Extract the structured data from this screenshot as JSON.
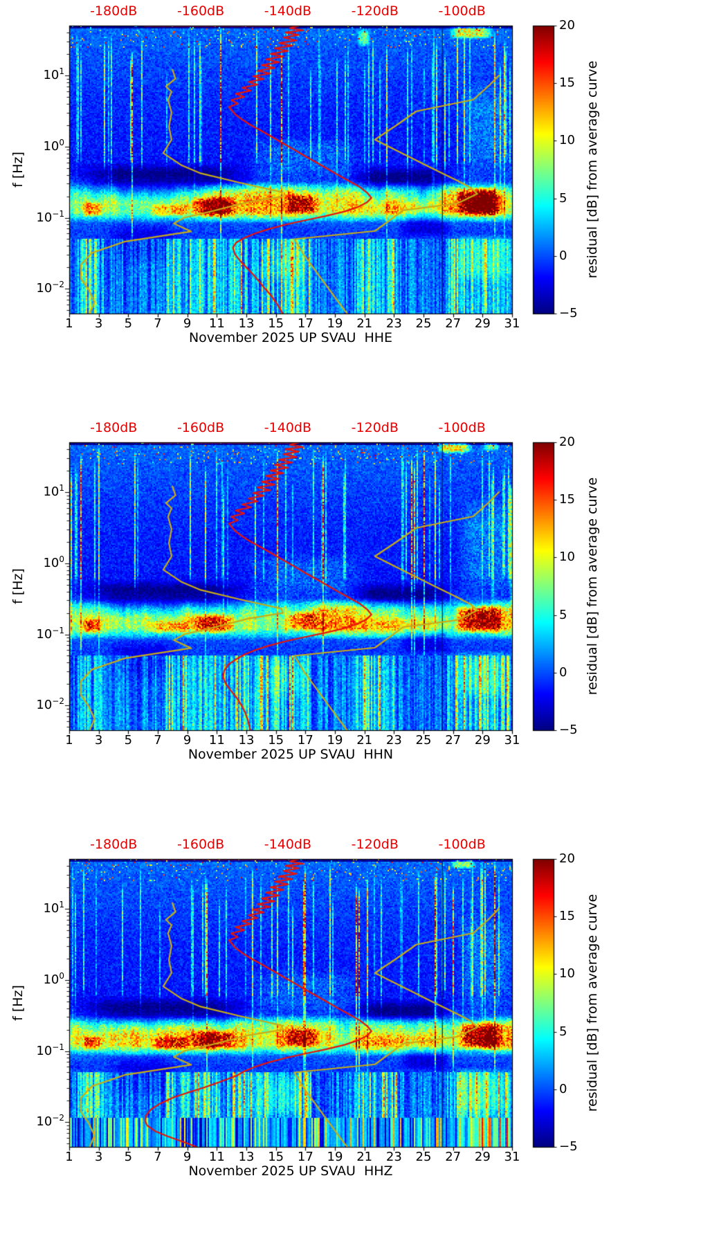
{
  "figure": {
    "background": "#ffffff"
  },
  "colors": {
    "red_curve": "#e81408",
    "yellow_curve": "#c9ac16",
    "top_axis_text": "#e80000",
    "axis": "#000000",
    "dark_line": "#0a1450"
  },
  "chart_data": {
    "type": "heatmap",
    "x_axis": {
      "range": [
        1,
        31
      ],
      "ticks": [
        1,
        3,
        5,
        7,
        9,
        11,
        13,
        15,
        17,
        19,
        21,
        23,
        25,
        27,
        29,
        31
      ]
    },
    "y_axis": {
      "label": "f [Hz]",
      "scale": "log",
      "range": [
        0.0045,
        50
      ],
      "major_ticks": [
        {
          "f": 10,
          "exp": "1"
        },
        {
          "f": 1,
          "exp": "0"
        },
        {
          "f": 0.1,
          "exp": "−1"
        },
        {
          "f": 0.01,
          "exp": "−2"
        }
      ]
    },
    "top_axis": {
      "db_at_day1": -190.2,
      "db_at_day31": -88.5,
      "ticks": [
        {
          "db": -180,
          "label": "-180dB"
        },
        {
          "db": -160,
          "label": "-160dB"
        },
        {
          "db": -140,
          "label": "-140dB"
        },
        {
          "db": -120,
          "label": "-120dB"
        },
        {
          "db": -100,
          "label": "-100dB"
        }
      ]
    },
    "colorbar": {
      "label": "residual [dB] from average curve",
      "range": [
        -5,
        20
      ],
      "colormap": "jet",
      "ticks": [
        {
          "v": 20,
          "label": "20"
        },
        {
          "v": 15,
          "label": "15"
        },
        {
          "v": 10,
          "label": "10"
        },
        {
          "v": 5,
          "label": "5"
        },
        {
          "v": 0,
          "label": "0"
        },
        {
          "v": -5,
          "label": "−5"
        }
      ]
    },
    "curves": {
      "red_high_f": [
        [
          49.5,
          -173
        ],
        [
          49.5,
          -137.5
        ],
        [
          46,
          -139.5
        ],
        [
          43,
          -136.5
        ],
        [
          40,
          -140.5
        ],
        [
          37,
          -137.5
        ],
        [
          34,
          -141
        ],
        [
          31,
          -138
        ],
        [
          28.5,
          -142
        ],
        [
          26,
          -139
        ],
        [
          24,
          -143
        ],
        [
          22,
          -140
        ],
        [
          20,
          -144
        ],
        [
          18.4,
          -141
        ],
        [
          16.8,
          -145
        ],
        [
          15.3,
          -142
        ],
        [
          13.9,
          -146
        ],
        [
          12.7,
          -143
        ],
        [
          11.6,
          -147
        ],
        [
          10.6,
          -144
        ],
        [
          9.7,
          -148
        ],
        [
          8.9,
          -145.5
        ],
        [
          8.1,
          -149
        ],
        [
          7.4,
          -147
        ],
        [
          6.7,
          -150.5
        ],
        [
          6.1,
          -148.5
        ],
        [
          5.5,
          -152
        ],
        [
          5.0,
          -150
        ],
        [
          4.5,
          -153
        ],
        [
          4.0,
          -151.5
        ],
        [
          3.6,
          -153.5
        ],
        [
          3.2,
          -152.8
        ],
        [
          2.8,
          -152
        ],
        [
          2.4,
          -150.5
        ],
        [
          2.0,
          -148.5
        ],
        [
          1.65,
          -146
        ],
        [
          1.35,
          -143.5
        ],
        [
          1.1,
          -141
        ],
        [
          0.9,
          -138.5
        ],
        [
          0.73,
          -136
        ],
        [
          0.6,
          -133.5
        ],
        [
          0.49,
          -131
        ],
        [
          0.4,
          -128.5
        ],
        [
          0.33,
          -126
        ],
        [
          0.27,
          -123.5
        ],
        [
          0.225,
          -121.8
        ],
        [
          0.19,
          -120.8
        ],
        [
          0.165,
          -121.8
        ],
        [
          0.142,
          -123.8
        ],
        [
          0.122,
          -127
        ],
        [
          0.105,
          -131.5
        ],
        [
          0.092,
          -136
        ],
        [
          0.08,
          -140.5
        ],
        [
          0.069,
          -144.5
        ],
        [
          0.06,
          -147.5
        ],
        [
          0.052,
          -150
        ],
        [
          0.045,
          -151.8
        ]
      ],
      "nlnm": [
        [
          12,
          -166.5
        ],
        [
          9,
          -165.8
        ],
        [
          7,
          -168
        ],
        [
          5.9,
          -166.7
        ],
        [
          4.5,
          -167.5
        ],
        [
          3,
          -166.7
        ],
        [
          1.9,
          -167.3
        ],
        [
          1.25,
          -166.7
        ],
        [
          0.81,
          -168.6
        ],
        [
          0.55,
          -164.5
        ],
        [
          0.42,
          -160
        ],
        [
          0.31,
          -151
        ],
        [
          0.23,
          -141.5
        ],
        [
          0.2,
          -141.1
        ],
        [
          0.167,
          -149
        ],
        [
          0.125,
          -157
        ],
        [
          0.1,
          -163.8
        ],
        [
          0.083,
          -166.2
        ],
        [
          0.064,
          -162.2
        ],
        [
          0.046,
          -177.5
        ],
        [
          0.032,
          -185
        ],
        [
          0.022,
          -187.5
        ],
        [
          0.014,
          -187.5
        ],
        [
          0.0099,
          -185.8
        ],
        [
          0.0065,
          -184.4
        ],
        [
          0.0045,
          -185.5
        ]
      ],
      "nhnm": [
        [
          10,
          -91.5
        ],
        [
          7,
          -94
        ],
        [
          4.55,
          -97.4
        ],
        [
          3.13,
          -110.5
        ],
        [
          2,
          -115
        ],
        [
          1.25,
          -120
        ],
        [
          0.5,
          -107
        ],
        [
          0.33,
          -101
        ],
        [
          0.263,
          -98
        ],
        [
          0.217,
          -96.5
        ],
        [
          0.159,
          -101
        ],
        [
          0.127,
          -113.5
        ],
        [
          0.1,
          -115.8
        ],
        [
          0.065,
          -120
        ],
        [
          0.05,
          -138.5
        ],
        [
          0.03,
          -136.3
        ],
        [
          0.02,
          -134.2
        ],
        [
          0.01,
          -130.6
        ],
        [
          0.0063,
          -128.2
        ],
        [
          0.0045,
          -126.4
        ]
      ]
    },
    "heatmap_features": {
      "f_profile": [
        [
          50,
          0.8
        ],
        [
          35,
          0.5
        ],
        [
          25,
          0.2
        ],
        [
          12,
          -0.2
        ],
        [
          5,
          -0.8
        ],
        [
          2,
          -1.2
        ],
        [
          1,
          -1.3
        ],
        [
          0.6,
          -1.5
        ],
        [
          0.4,
          -1.2
        ],
        [
          0.3,
          0
        ],
        [
          0.22,
          2.5
        ],
        [
          0.16,
          4.5
        ],
        [
          0.12,
          4.0
        ],
        [
          0.1,
          2.0
        ],
        [
          0.08,
          0.0
        ],
        [
          0.06,
          -0.5
        ],
        [
          0.04,
          0.0
        ],
        [
          0.02,
          0.5
        ],
        [
          0.01,
          0.8
        ],
        [
          0.0045,
          1.0
        ]
      ],
      "band": {
        "f": [
          0.085,
          0.32
        ],
        "amp": 6.5
      },
      "blobs": [
        {
          "day": [
            27.2,
            30.5
          ],
          "f": [
            0.1,
            0.27
          ],
          "amp": 12.5
        },
        {
          "day": [
            9.2,
            12.4
          ],
          "f": [
            0.1,
            0.2
          ],
          "amp": 8
        },
        {
          "day": [
            15.6,
            18.0
          ],
          "f": [
            0.11,
            0.22
          ],
          "amp": 7
        },
        {
          "day": [
            1.8,
            3.3
          ],
          "f": [
            0.1,
            0.17
          ],
          "amp": 6
        },
        {
          "day": [
            6.3,
            9.3
          ],
          "f": [
            0.1,
            0.16
          ],
          "amp": 5
        },
        {
          "day": [
            27.2,
            31.4
          ],
          "f": [
            0.3,
            9
          ],
          "amp": 2.2
        },
        {
          "day": [
            12.8,
            21.2
          ],
          "f": [
            0.33,
            1.4
          ],
          "amp": 1.8
        },
        {
          "day": [
            26.8,
            31.3
          ],
          "f": [
            0.012,
            0.06
          ],
          "amp": 5.5
        },
        {
          "day": [
            13.5,
            17.5
          ],
          "f": [
            0.012,
            0.05
          ],
          "amp": 4
        }
      ],
      "dark_regions": [
        {
          "day": [
            1,
            13.8
          ],
          "f": [
            0.17,
            0.6
          ],
          "amp": -3.5
        },
        {
          "day": [
            19.8,
            27.2
          ],
          "f": [
            0.14,
            0.55
          ],
          "amp": -4
        },
        {
          "day": [
            23.2,
            27.0
          ],
          "f": [
            0.05,
            0.14
          ],
          "amp": -2.5
        },
        {
          "day": [
            3.5,
            8.5
          ],
          "f": [
            0.02,
            0.09
          ],
          "amp": -2
        }
      ],
      "lowband_clusters": [
        [
          1.6,
          3.4
        ],
        [
          7.6,
          17.4
        ],
        [
          20.3,
          23.2
        ],
        [
          26.6,
          31.2
        ]
      ],
      "dark_line_days": [
        26.25
      ],
      "red_top_clip_segment_db": [
        -173,
        -137.5
      ]
    },
    "panels": [
      {
        "channel": "HHE",
        "xlabel": "November 2025 UP SVAU  HHE",
        "seed": 11,
        "bottom_stripes": false,
        "extra_blobs": [
          {
            "day": [
              26.7,
              29.8
            ],
            "f": [
              32,
              50
            ],
            "amp": 9
          },
          {
            "day": [
              20.5,
              21.4
            ],
            "f": [
              25,
              45
            ],
            "amp": 6
          }
        ],
        "red_tail": [
          [
            0.038,
            -152.6
          ],
          [
            0.031,
            -152.2
          ],
          [
            0.025,
            -151
          ],
          [
            0.02,
            -149.5
          ],
          [
            0.016,
            -148
          ],
          [
            0.0125,
            -146.5
          ],
          [
            0.01,
            -145.2
          ],
          [
            0.008,
            -143.8
          ],
          [
            0.0063,
            -142.6
          ],
          [
            0.005,
            -141.6
          ],
          [
            0.0045,
            -141.2
          ]
        ]
      },
      {
        "channel": "HHN",
        "xlabel": "November 2025 UP SVAU  HHN",
        "seed": 22,
        "bottom_stripes": false,
        "extra_blobs": [
          {
            "day": [
              25.9,
              28.3
            ],
            "f": [
              35,
              50
            ],
            "amp": 10
          },
          {
            "day": [
              29.0,
              30.2
            ],
            "f": [
              38,
              50
            ],
            "amp": 6
          }
        ],
        "red_tail": [
          [
            0.038,
            -153.6
          ],
          [
            0.031,
            -154.6
          ],
          [
            0.025,
            -154.9
          ],
          [
            0.02,
            -154.2
          ],
          [
            0.016,
            -153
          ],
          [
            0.0125,
            -151.6
          ],
          [
            0.01,
            -150.6
          ],
          [
            0.008,
            -149.8
          ],
          [
            0.0063,
            -149.2
          ],
          [
            0.005,
            -148.8
          ],
          [
            0.0045,
            -148.6
          ]
        ]
      },
      {
        "channel": "HHZ",
        "xlabel": "November 2025 UP SVAU  HHZ",
        "seed": 33,
        "bottom_stripes": true,
        "extra_blobs": [
          {
            "day": [
              26.8,
              28.6
            ],
            "f": [
              36,
              50
            ],
            "amp": 7
          }
        ],
        "red_tail": [
          [
            0.038,
            -155
          ],
          [
            0.031,
            -159
          ],
          [
            0.026,
            -163
          ],
          [
            0.022,
            -166.5
          ],
          [
            0.018,
            -169.5
          ],
          [
            0.015,
            -171.5
          ],
          [
            0.0125,
            -172.5
          ],
          [
            0.0105,
            -172.8
          ],
          [
            0.009,
            -172.3
          ],
          [
            0.0075,
            -170.5
          ],
          [
            0.0063,
            -167.5
          ],
          [
            0.0053,
            -164
          ],
          [
            0.0045,
            -161
          ]
        ]
      }
    ]
  }
}
